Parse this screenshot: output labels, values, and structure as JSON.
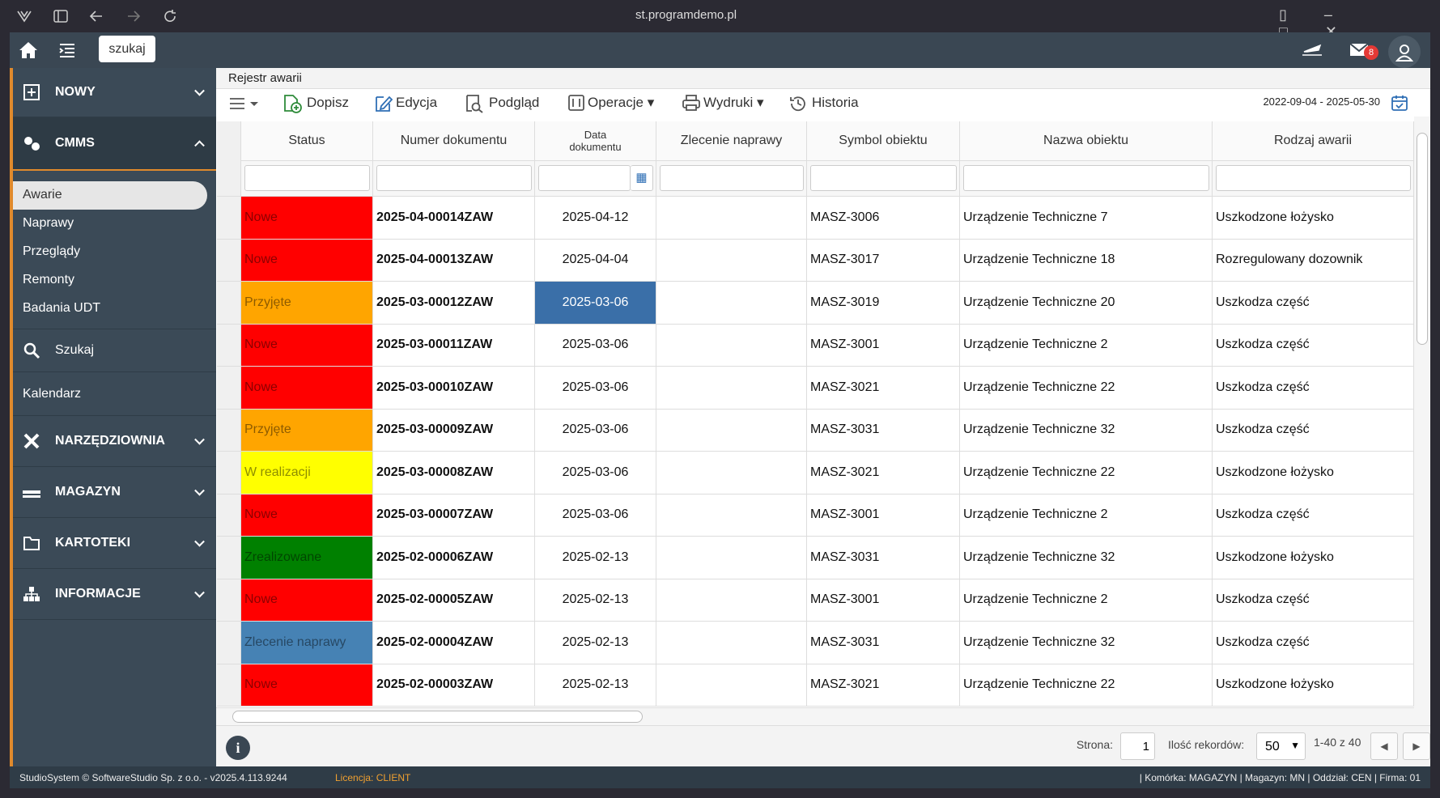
{
  "browser": {
    "url": "st.programdemo.pl"
  },
  "header": {
    "search": "szukaj",
    "badge": "8"
  },
  "sidebar": {
    "sections": [
      "NOWY",
      "CMMS",
      "NARZĘDZIOWNIA",
      "MAGAZYN",
      "KARTOTEKI",
      "INFORMACJE"
    ],
    "cmms_items": [
      "Awarie",
      "Naprawy",
      "Przeglądy",
      "Remonty",
      "Badania UDT"
    ],
    "tools": [
      "Szukaj",
      "Kalendarz"
    ]
  },
  "page": {
    "title": "Rejestr awarii"
  },
  "toolbar": [
    "Dopisz",
    "Edycja",
    "Podgląd",
    "Operacje",
    "Wydruki",
    "Historia"
  ],
  "toolbar_range": "2022-09-04 - 2025-05-30",
  "table": {
    "columns": [
      "Status",
      "Numer dokumentu",
      "Data dokumentu",
      "Zlecenie naprawy",
      "Symbol obiektu",
      "Nazwa obiektu",
      "Rodzaj awarii"
    ],
    "rows": [
      {
        "status": "Nowe",
        "color": "#ff0000",
        "number": "2025-04-00014ZAW",
        "date": "2025-04-12",
        "symbol": "MASZ-3006",
        "name": "Urządzenie Techniczne 7",
        "type": "Uszkodzone łożysko"
      },
      {
        "status": "Nowe",
        "color": "#ff0000",
        "number": "2025-04-00013ZAW",
        "date": "2025-04-04",
        "symbol": "MASZ-3017",
        "name": "Urządzenie Techniczne 18",
        "type": "Rozregulowany dozownik"
      },
      {
        "status": "Przyjęte",
        "color": "#ffa500",
        "number": "2025-03-00012ZAW",
        "date": "2025-03-06",
        "symbol": "MASZ-3019",
        "name": "Urządzenie Techniczne 20",
        "type": "Uszkodza część"
      },
      {
        "status": "Nowe",
        "color": "#ff0000",
        "number": "2025-03-00011ZAW",
        "date": "2025-03-06",
        "symbol": "MASZ-3001",
        "name": "Urządzenie Techniczne 2",
        "type": "Uszkodza część"
      },
      {
        "status": "Nowe",
        "color": "#ff0000",
        "number": "2025-03-00010ZAW",
        "date": "2025-03-06",
        "symbol": "MASZ-3021",
        "name": "Urządzenie Techniczne 22",
        "type": "Uszkodza część"
      },
      {
        "status": "Przyjęte",
        "color": "#ffa500",
        "number": "2025-03-00009ZAW",
        "date": "2025-03-06",
        "symbol": "MASZ-3031",
        "name": "Urządzenie Techniczne 32",
        "type": "Uszkodza część"
      },
      {
        "status": "W realizacji",
        "color": "#ffff00",
        "number": "2025-03-00008ZAW",
        "date": "2025-03-06",
        "symbol": "MASZ-3021",
        "name": "Urządzenie Techniczne 22",
        "type": "Uszkodzone łożysko"
      },
      {
        "status": "Nowe",
        "color": "#ff0000",
        "number": "2025-03-00007ZAW",
        "date": "2025-03-06",
        "symbol": "MASZ-3001",
        "name": "Urządzenie Techniczne 2",
        "type": "Uszkodza część"
      },
      {
        "status": "Zrealizowane",
        "color": "#008000",
        "number": "2025-02-00006ZAW",
        "date": "2025-02-13",
        "symbol": "MASZ-3031",
        "name": "Urządzenie Techniczne 32",
        "type": "Uszkodzone łożysko"
      },
      {
        "status": "Nowe",
        "color": "#ff0000",
        "number": "2025-02-00005ZAW",
        "date": "2025-02-13",
        "symbol": "MASZ-3001",
        "name": "Urządzenie Techniczne 2",
        "type": "Uszkodza część"
      },
      {
        "status": "Zlecenie naprawy",
        "color": "#4682b4",
        "number": "2025-02-00004ZAW",
        "date": "2025-02-13",
        "symbol": "MASZ-3031",
        "name": "Urządzenie Techniczne 32",
        "type": "Uszkodza część"
      },
      {
        "status": "Nowe",
        "color": "#ff0000",
        "number": "2025-02-00003ZAW",
        "date": "2025-02-13",
        "symbol": "MASZ-3021",
        "name": "Urządzenie Techniczne 22",
        "type": "Uszkodzone łożysko"
      }
    ]
  },
  "pager": {
    "page_label": "Strona:",
    "page": "1",
    "records_label": "Ilość rekordów:",
    "records": "50",
    "range": "1-40 z 40"
  },
  "footer": {
    "copyright": "StudioSystem © SoftwareStudio Sp. z o.o. - v2025.4.113.9244",
    "license": "Licencja: CLIENT",
    "context": "| Komórka: MAGAZYN | Magazyn: MN | Oddział: CEN | Firma: 01"
  }
}
